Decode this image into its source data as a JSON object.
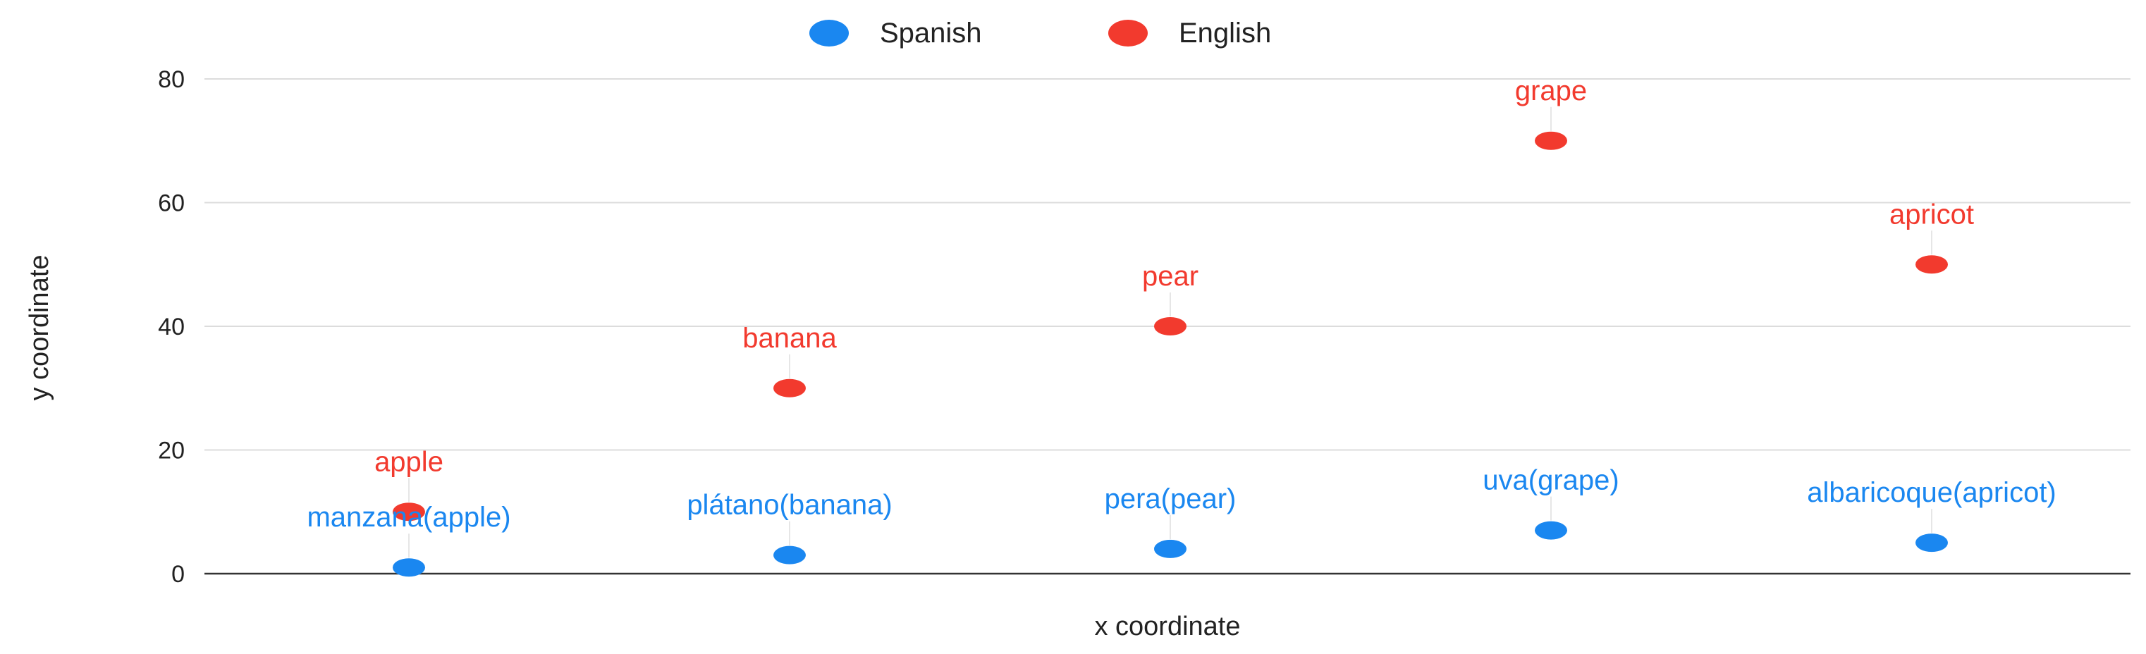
{
  "chart_data": {
    "type": "scatter",
    "title": "",
    "xlabel": "x coordinate",
    "ylabel": "y coordinate",
    "ylim": [
      0,
      80
    ],
    "yticks": [
      "0",
      "20",
      "40",
      "60",
      "80"
    ],
    "grid": true,
    "legend": "top-center",
    "series": [
      {
        "name": "Spanish",
        "color": "#1a87f0",
        "points": [
          {
            "x": 1,
            "y": 1,
            "label": "manzana(apple)"
          },
          {
            "x": 2,
            "y": 3,
            "label": "plátano(banana)"
          },
          {
            "x": 3,
            "y": 4,
            "label": "pera(pear)"
          },
          {
            "x": 4,
            "y": 7,
            "label": "uva(grape)"
          },
          {
            "x": 5,
            "y": 5,
            "label": "albaricoque(apricot)"
          }
        ]
      },
      {
        "name": "English",
        "color": "#f23a2e",
        "points": [
          {
            "x": 1,
            "y": 10,
            "label": "apple"
          },
          {
            "x": 2,
            "y": 30,
            "label": "banana"
          },
          {
            "x": 3,
            "y": 40,
            "label": "pear"
          },
          {
            "x": 4,
            "y": 70,
            "label": "grape"
          },
          {
            "x": 5,
            "y": 50,
            "label": "apricot"
          }
        ]
      }
    ]
  }
}
